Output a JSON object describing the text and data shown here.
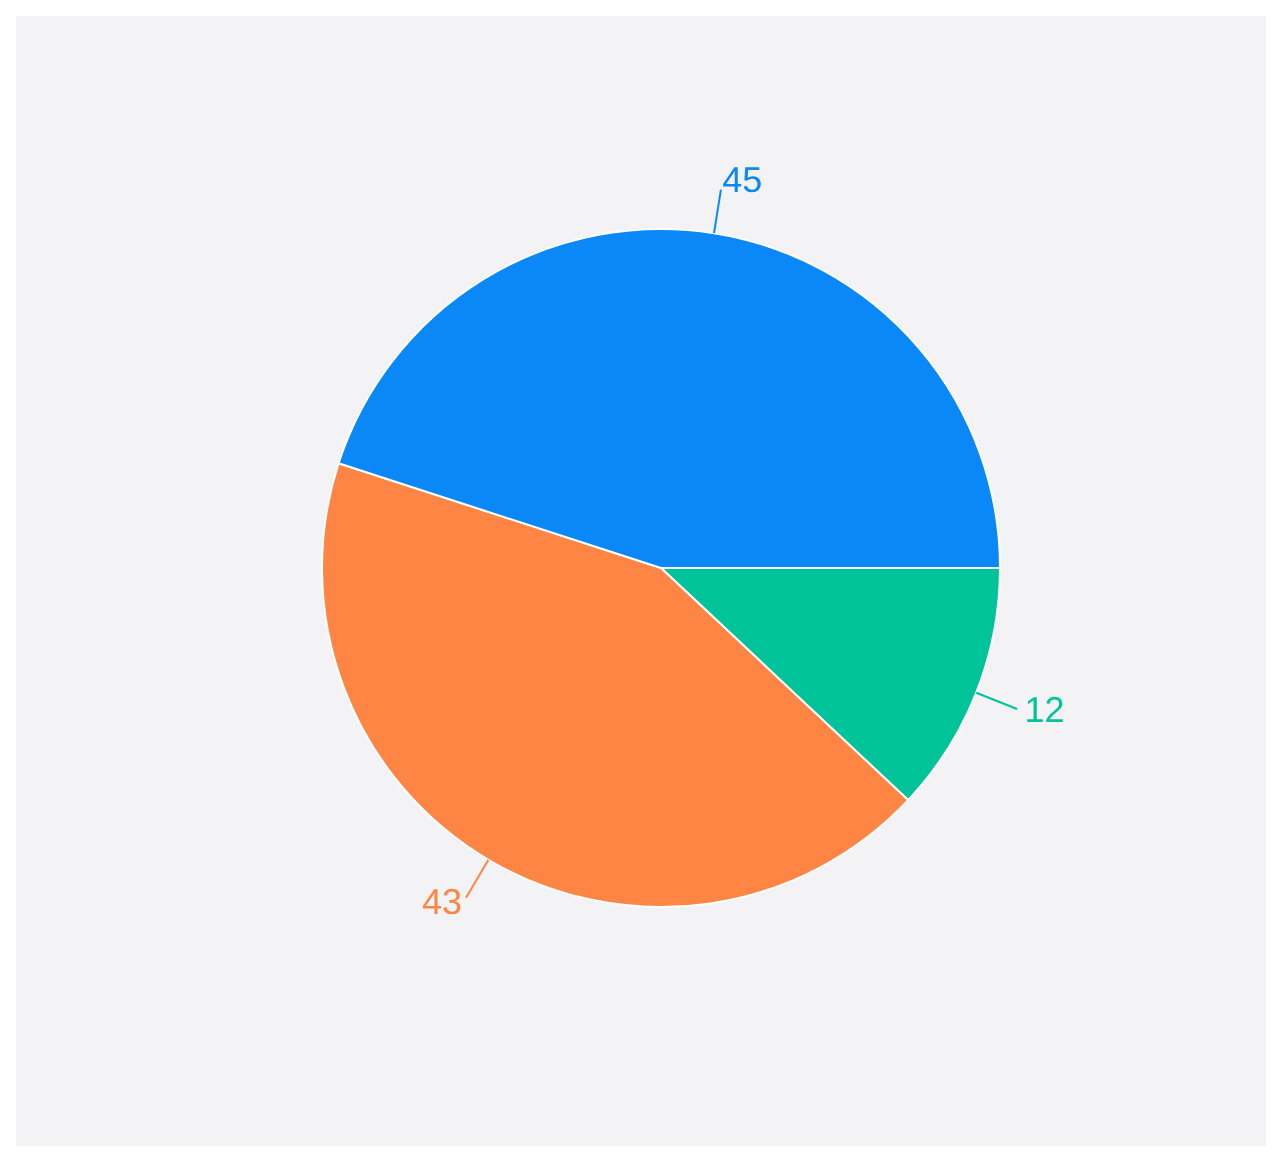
{
  "chart_data": {
    "type": "pie",
    "categories": [
      null,
      null,
      null
    ],
    "values": [
      12,
      43,
      45
    ],
    "colors": [
      "#00c39a",
      "#ff8544",
      "#0b88f8"
    ],
    "data_labels": true,
    "legend": false
  }
}
